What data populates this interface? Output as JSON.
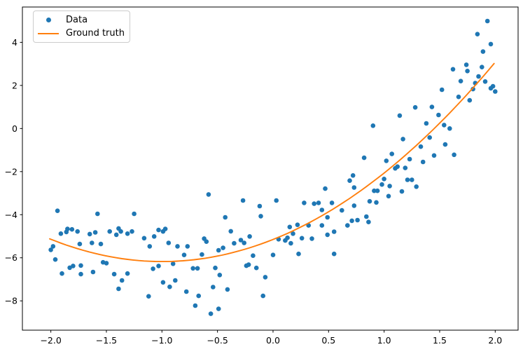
{
  "chart_data": {
    "type": "scatter",
    "title": "",
    "xlabel": "",
    "ylabel": "",
    "grid": false,
    "background": "#ffffff",
    "spine_color": "#000000",
    "tick_color": "#000000",
    "text_color": "#000000",
    "axes": {
      "x_min": -2.256,
      "x_max": 2.206,
      "y_min": -9.36,
      "y_max": 5.64
    },
    "x_ticks": [
      {
        "v": -2.0,
        "label": "−2.0"
      },
      {
        "v": -1.5,
        "label": "−1.5"
      },
      {
        "v": -1.0,
        "label": "−1.0"
      },
      {
        "v": -0.5,
        "label": "−0.5"
      },
      {
        "v": 0.0,
        "label": "0.0"
      },
      {
        "v": 0.5,
        "label": "0.5"
      },
      {
        "v": 1.0,
        "label": "1.0"
      },
      {
        "v": 1.5,
        "label": "1.5"
      },
      {
        "v": 2.0,
        "label": "2.0"
      }
    ],
    "y_ticks": [
      {
        "v": -8,
        "label": "−8"
      },
      {
        "v": -6,
        "label": "−6"
      },
      {
        "v": -4,
        "label": "−4"
      },
      {
        "v": -2,
        "label": "−2"
      },
      {
        "v": 0,
        "label": "0"
      },
      {
        "v": 2,
        "label": "2"
      },
      {
        "v": 4,
        "label": "4"
      }
    ],
    "legend": {
      "position": "upper left",
      "entries": [
        {
          "label": "Data",
          "marker": "dot",
          "color": "#1f77b4"
        },
        {
          "label": "Ground truth",
          "marker": "line",
          "color": "#ff7f0e"
        }
      ]
    },
    "style": {
      "marker_radius": 3.3,
      "curve_width": 1.9
    },
    "series": [
      {
        "name": "Data",
        "type": "scatter",
        "color": "#1f77b4",
        "points": [
          [
            -1.94,
            -3.82
          ],
          [
            -1.58,
            -3.96
          ],
          [
            -1.91,
            -4.88
          ],
          [
            -1.86,
            -4.8
          ],
          [
            -1.85,
            -4.66
          ],
          [
            -1.81,
            -4.68
          ],
          [
            -1.76,
            -4.78
          ],
          [
            -1.98,
            -5.47
          ],
          [
            -2.0,
            -5.63
          ],
          [
            -1.96,
            -6.08
          ],
          [
            -1.9,
            -6.73
          ],
          [
            -1.74,
            -5.36
          ],
          [
            -1.73,
            -6.36
          ],
          [
            -1.65,
            -4.9
          ],
          [
            -1.63,
            -5.31
          ],
          [
            -1.55,
            -5.36
          ],
          [
            -1.8,
            -6.38
          ],
          [
            -1.83,
            -6.46
          ],
          [
            -1.73,
            -6.76
          ],
          [
            -1.62,
            -6.66
          ],
          [
            -1.6,
            -4.82
          ],
          [
            -1.47,
            -4.78
          ],
          [
            -1.37,
            -4.78
          ],
          [
            -1.31,
            -4.88
          ],
          [
            -1.41,
            -4.93
          ],
          [
            -1.25,
            -3.96
          ],
          [
            -1.39,
            -4.64
          ],
          [
            -1.27,
            -4.78
          ],
          [
            -1.16,
            -5.09
          ],
          [
            -1.11,
            -5.47
          ],
          [
            -1.07,
            -5.01
          ],
          [
            -1.03,
            -4.71
          ],
          [
            -0.97,
            -4.66
          ],
          [
            -0.99,
            -4.78
          ],
          [
            -0.94,
            -5.31
          ],
          [
            -0.86,
            -5.47
          ],
          [
            -0.9,
            -6.28
          ],
          [
            -0.8,
            -5.87
          ],
          [
            -0.77,
            -5.47
          ],
          [
            -1.03,
            -6.38
          ],
          [
            -1.08,
            -6.51
          ],
          [
            -0.99,
            -7.14
          ],
          [
            -0.93,
            -7.35
          ],
          [
            -0.88,
            -7.05
          ],
          [
            -0.78,
            -7.57
          ],
          [
            -1.12,
            -7.79
          ],
          [
            -1.36,
            -7.05
          ],
          [
            -1.39,
            -7.44
          ],
          [
            -1.31,
            -6.73
          ],
          [
            -1.43,
            -6.76
          ],
          [
            -1.5,
            -6.25
          ],
          [
            -1.53,
            -6.21
          ],
          [
            -0.58,
            -3.06
          ],
          [
            -0.27,
            -3.34
          ],
          [
            0.03,
            -3.34
          ],
          [
            -0.12,
            -3.6
          ],
          [
            -0.11,
            -4.07
          ],
          [
            -0.43,
            -4.12
          ],
          [
            -0.38,
            -4.77
          ],
          [
            -0.62,
            -5.11
          ],
          [
            -0.6,
            -5.25
          ],
          [
            -0.64,
            -5.85
          ],
          [
            -0.72,
            -6.49
          ],
          [
            -0.68,
            -6.49
          ],
          [
            -0.52,
            -6.47
          ],
          [
            -0.48,
            -6.8
          ],
          [
            -0.54,
            -7.36
          ],
          [
            -0.67,
            -7.77
          ],
          [
            -0.7,
            -8.22
          ],
          [
            -0.56,
            -8.6
          ],
          [
            -0.49,
            -8.37
          ],
          [
            -0.41,
            -7.47
          ],
          [
            -0.45,
            -5.54
          ],
          [
            -0.49,
            -5.65
          ],
          [
            -0.35,
            -5.33
          ],
          [
            -0.26,
            -5.31
          ],
          [
            -0.21,
            -5.01
          ],
          [
            -0.29,
            -5.18
          ],
          [
            -0.22,
            -6.32
          ],
          [
            -0.24,
            -6.37
          ],
          [
            -0.18,
            -5.9
          ],
          [
            -0.15,
            -6.47
          ],
          [
            -0.07,
            -6.9
          ],
          [
            -0.09,
            -7.77
          ],
          [
            0.0,
            -5.87
          ],
          [
            0.05,
            -5.14
          ],
          [
            0.13,
            -5.07
          ],
          [
            0.11,
            -5.2
          ],
          [
            0.15,
            -4.57
          ],
          [
            0.22,
            -4.47
          ],
          [
            0.26,
            -5.09
          ],
          [
            0.16,
            -5.33
          ],
          [
            0.18,
            -4.88
          ],
          [
            0.23,
            -5.82
          ],
          [
            0.32,
            -4.5
          ],
          [
            0.35,
            -5.11
          ],
          [
            0.44,
            -4.5
          ],
          [
            0.49,
            -4.12
          ],
          [
            0.53,
            -3.45
          ],
          [
            0.37,
            -3.49
          ],
          [
            0.41,
            -3.45
          ],
          [
            0.44,
            -3.78
          ],
          [
            0.62,
            -3.8
          ],
          [
            0.67,
            -4.5
          ],
          [
            0.71,
            -4.28
          ],
          [
            0.76,
            -4.25
          ],
          [
            0.49,
            -4.93
          ],
          [
            0.55,
            -4.79
          ],
          [
            0.55,
            -5.82
          ],
          [
            0.73,
            -2.74
          ],
          [
            0.69,
            -2.42
          ],
          [
            0.72,
            -2.18
          ],
          [
            0.47,
            -2.79
          ],
          [
            0.28,
            -3.45
          ],
          [
            1.93,
            4.99
          ],
          [
            1.84,
            4.38
          ],
          [
            1.96,
            3.92
          ],
          [
            1.89,
            3.57
          ],
          [
            1.88,
            2.85
          ],
          [
            1.74,
            2.96
          ],
          [
            1.75,
            2.67
          ],
          [
            1.62,
            2.75
          ],
          [
            1.69,
            2.2
          ],
          [
            1.85,
            2.42
          ],
          [
            1.91,
            2.18
          ],
          [
            1.82,
            2.11
          ],
          [
            1.8,
            1.83
          ],
          [
            1.98,
            1.96
          ],
          [
            2.0,
            1.72
          ],
          [
            1.96,
            1.87
          ],
          [
            1.52,
            1.8
          ],
          [
            1.67,
            1.47
          ],
          [
            1.77,
            1.31
          ],
          [
            1.28,
            0.98
          ],
          [
            1.43,
            1.0
          ],
          [
            1.49,
            0.63
          ],
          [
            1.14,
            0.6
          ],
          [
            0.9,
            0.13
          ],
          [
            1.38,
            0.24
          ],
          [
            1.54,
            0.16
          ],
          [
            1.59,
            0.0
          ],
          [
            1.17,
            -0.49
          ],
          [
            1.41,
            -0.42
          ],
          [
            1.55,
            -0.74
          ],
          [
            1.33,
            -0.84
          ],
          [
            1.07,
            -1.18
          ],
          [
            1.45,
            -1.25
          ],
          [
            1.63,
            -1.22
          ],
          [
            1.02,
            -1.5
          ],
          [
            0.82,
            -1.36
          ],
          [
            1.23,
            -1.42
          ],
          [
            1.35,
            -1.55
          ],
          [
            1.12,
            -1.77
          ],
          [
            1.19,
            -1.83
          ],
          [
            1.1,
            -1.85
          ],
          [
            0.98,
            -2.6
          ],
          [
            1.0,
            -2.34
          ],
          [
            1.05,
            -2.67
          ],
          [
            1.21,
            -2.38
          ],
          [
            1.25,
            -2.38
          ],
          [
            1.16,
            -2.92
          ],
          [
            1.29,
            -2.7
          ],
          [
            1.04,
            -3.14
          ],
          [
            0.91,
            -2.89
          ],
          [
            0.94,
            -2.89
          ],
          [
            0.87,
            -3.38
          ],
          [
            0.93,
            -3.43
          ],
          [
            0.73,
            -3.58
          ],
          [
            0.84,
            -4.09
          ],
          [
            0.86,
            -4.34
          ]
        ]
      },
      {
        "name": "Ground truth",
        "type": "line",
        "color": "#ff7f0e",
        "poly_coeffs": [
          1.03,
          2.055,
          -5.15
        ],
        "domain": [
          -2.01,
          2.0
        ],
        "equation": "y = x^2 + 2x - 5 (approx.)"
      }
    ]
  }
}
